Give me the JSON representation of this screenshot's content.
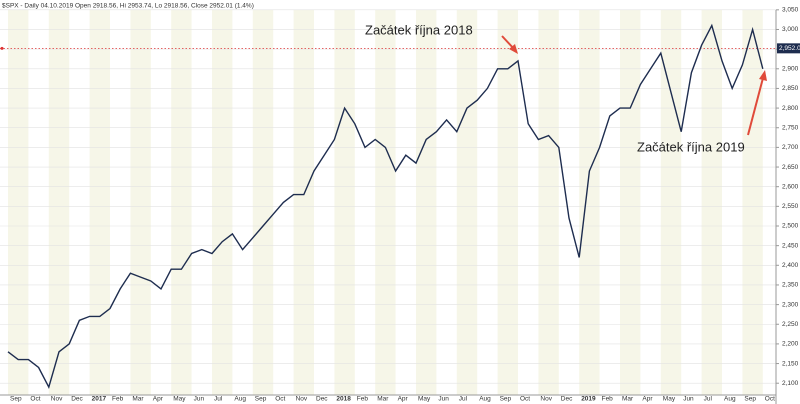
{
  "chart_data": {
    "type": "line",
    "title": "$SPX - Daily 04.10.2019 Open 2918.56, Hi 2953.74, Lo 2918.56, Close 2952.01 (1.4%)",
    "categories": [
      "Sep",
      null,
      "Oct",
      null,
      "Nov",
      null,
      "Dec",
      null,
      "2017",
      null,
      "Feb",
      null,
      "Mar",
      null,
      "Apr",
      null,
      "May",
      null,
      "Jun",
      null,
      "Jul",
      null,
      "Aug",
      null,
      "Sep",
      null,
      "Oct",
      null,
      "Nov",
      null,
      "Dec",
      null,
      "2018",
      null,
      "Feb",
      null,
      "Mar",
      null,
      "Apr",
      null,
      "May",
      null,
      "Jun",
      null,
      "Jul",
      null,
      "Aug",
      null,
      "Sep",
      null,
      "Oct",
      null,
      "Nov",
      null,
      "Dec",
      null,
      "2019",
      null,
      "Feb",
      null,
      "Mar",
      null,
      "Apr",
      null,
      "May",
      null,
      "Jun",
      null,
      "Jul",
      null,
      "Aug",
      null,
      "Sep",
      null,
      "Oct"
    ],
    "series": [
      {
        "name": "$SPX",
        "color": "#1e2d4f",
        "values": [
          2180,
          2160,
          2160,
          2140,
          2090,
          2180,
          2200,
          2260,
          2270,
          2270,
          2290,
          2340,
          2380,
          2370,
          2360,
          2340,
          2390,
          2390,
          2430,
          2440,
          2430,
          2460,
          2480,
          2440,
          2470,
          2500,
          2530,
          2560,
          2580,
          2580,
          2640,
          2680,
          2720,
          2800,
          2760,
          2700,
          2720,
          2700,
          2640,
          2680,
          2660,
          2720,
          2740,
          2770,
          2740,
          2800,
          2820,
          2850,
          2900,
          2900,
          2920,
          2760,
          2720,
          2730,
          2700,
          2520,
          2420,
          2640,
          2700,
          2780,
          2800,
          2800,
          2860,
          2900,
          2940,
          2840,
          2740,
          2890,
          2960,
          3010,
          2920,
          2850,
          2910,
          3000,
          2900
        ]
      }
    ],
    "ylim": [
      2070,
      3075
    ],
    "yticks": [
      {
        "value": 2100,
        "label": "2,100"
      },
      {
        "value": 2150,
        "label": "2,150"
      },
      {
        "value": 2200,
        "label": "2,200"
      },
      {
        "value": 2250,
        "label": "2,250"
      },
      {
        "value": 2300,
        "label": "2,300"
      },
      {
        "value": 2350,
        "label": "2,350"
      },
      {
        "value": 2400,
        "label": "2,400"
      },
      {
        "value": 2450,
        "label": "2,450"
      },
      {
        "value": 2500,
        "label": "2,500"
      },
      {
        "value": 2550,
        "label": "2,550"
      },
      {
        "value": 2600,
        "label": "2,600"
      },
      {
        "value": 2650,
        "label": "2,650"
      },
      {
        "value": 2700,
        "label": "2,700"
      },
      {
        "value": 2750,
        "label": "2,750"
      },
      {
        "value": 2800,
        "label": "2,800"
      },
      {
        "value": 2850,
        "label": "2,850"
      },
      {
        "value": 2900,
        "label": "2,900"
      },
      {
        "value": 2950,
        "label": "2,950"
      },
      {
        "value": 3000,
        "label": "3,000"
      },
      {
        "value": 3050,
        "label": "3,050"
      }
    ],
    "grid": true,
    "last_price": {
      "value": 2952.01,
      "label": "2,952.01"
    },
    "annotations": [
      "Začátek října 2018",
      "Začátek října 2019"
    ]
  }
}
